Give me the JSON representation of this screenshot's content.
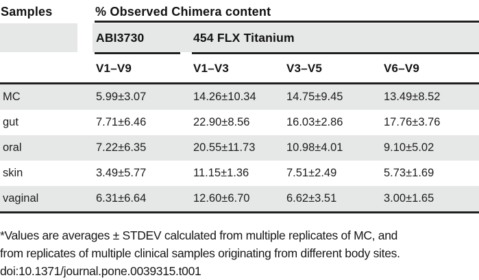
{
  "table": {
    "samples_header": "Samples",
    "group_header": "% Observed Chimera content",
    "platform_headers": {
      "abi": "ABI3730",
      "flx": "454 FLX Titanium"
    },
    "region_headers": [
      "V1–V9",
      "V1–V3",
      "V3–V5",
      "V6–V9"
    ],
    "rows": [
      {
        "sample": "MC",
        "values": [
          "5.99±3.07",
          "14.26±10.34",
          "14.75±9.45",
          "13.49±8.52"
        ]
      },
      {
        "sample": "gut",
        "values": [
          "7.71±6.46",
          "22.90±8.56",
          "16.03±2.86",
          "17.76±3.76"
        ]
      },
      {
        "sample": "oral",
        "values": [
          "7.22±6.35",
          "20.55±11.73",
          "10.98±4.01",
          "9.10±5.02"
        ]
      },
      {
        "sample": "skin",
        "values": [
          "3.49±5.77",
          "11.15±1.36",
          "7.51±2.49",
          "5.73±1.69"
        ]
      },
      {
        "sample": "vaginal",
        "values": [
          "6.31±6.64",
          "12.60±6.70",
          "6.62±3.51",
          "3.00±1.65"
        ]
      }
    ]
  },
  "footnote": {
    "line1": "*Values are averages ± STDEV calculated from multiple replicates of MC, and",
    "line2": "from replicates of multiple clinical samples originating from different body sites.",
    "doi": "doi:10.1371/journal.pone.0039315.t001"
  },
  "colors": {
    "row_shade": "#e6e7e7",
    "rule": "#1f1f1f",
    "text": "#1a1a1a"
  }
}
